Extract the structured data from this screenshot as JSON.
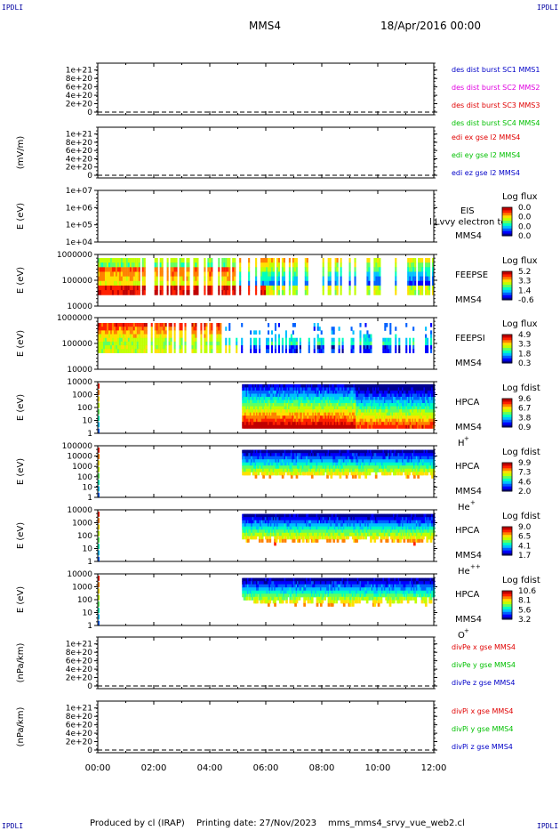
{
  "corner_label": "IPDLI",
  "header": {
    "spacecraft": "MMS4",
    "datetime": "18/Apr/2016 00:00"
  },
  "footer": {
    "produced_by": "Produced by cl (IRAP)",
    "printing_date": "Printing date: 27/Nov/2023",
    "script": "mms_mms4_srvy_vue_web2.cl"
  },
  "colors": {
    "blue": "#0000c8",
    "red": "#e00000",
    "green": "#00c000",
    "magenta": "#e000e0"
  },
  "chart_data": [
    {
      "type": "line",
      "ylabel": "",
      "yticks": [
        "1e+21",
        "8e+20",
        "6e+20",
        "4e+20",
        "2e+20",
        "0"
      ],
      "ylim": [
        0,
        1.1e+21
      ],
      "legend": [
        {
          "text": "des dist burst SC1 MMS1",
          "color": "#0000c8"
        },
        {
          "text": "des dist burst SC2 MMS2",
          "color": "#e000e0"
        },
        {
          "text": "des dist burst SC3 MMS3",
          "color": "#e00000"
        },
        {
          "text": "des dist burst SC4 MMS4",
          "color": "#00c000"
        }
      ]
    },
    {
      "type": "line",
      "ylabel": "(mV/m)",
      "yticks": [
        "1e+21",
        "8e+20",
        "6e+20",
        "4e+20",
        "2e+20",
        "0"
      ],
      "ylim": [
        0,
        1.1e+21
      ],
      "legend": [
        {
          "text": "edi ex gse l2 MMS4",
          "color": "#e00000"
        },
        {
          "text": "edi ey gse l2 MMS4",
          "color": "#00c000"
        },
        {
          "text": "edi ez gse l2 MMS4",
          "color": "#0000c8"
        }
      ]
    },
    {
      "type": "heatmap",
      "ylabel": "E (eV)",
      "yticks": [
        "1e+07",
        "1e+06",
        "1e+05",
        "1e+04"
      ],
      "scale": "log",
      "labels": [
        "EIS",
        "MMS4"
      ],
      "overlay_text": "l Lvvy electron to",
      "colorbar": {
        "title": "Log flux",
        "ticks": [
          "0.0",
          "0.0",
          "0.0",
          "0.0"
        ]
      }
    },
    {
      "type": "heatmap",
      "ylabel": "E (eV)",
      "yticks": [
        "1000000",
        "100000",
        "10000"
      ],
      "scale": "log",
      "labels": [
        "FEEPSE",
        "MMS4"
      ],
      "colorbar": {
        "title": "Log flux",
        "ticks": [
          "5.2",
          "3.3",
          "1.4",
          "-0.6"
        ]
      }
    },
    {
      "type": "heatmap",
      "ylabel": "E (eV)",
      "yticks": [
        "1000000",
        "100000",
        "10000"
      ],
      "scale": "log",
      "labels": [
        "FEEPSI",
        "MMS4"
      ],
      "colorbar": {
        "title": "Log flux",
        "ticks": [
          "4.9",
          "3.3",
          "1.8",
          "0.3"
        ]
      }
    },
    {
      "type": "heatmap",
      "ylabel": "E (eV)",
      "yticks": [
        "10000",
        "1000",
        "100",
        "10",
        "1"
      ],
      "scale": "log",
      "labels": [
        "HPCA",
        "MMS4"
      ],
      "species": "H",
      "species_sup": "+",
      "colorbar": {
        "title": "Log fdist",
        "ticks": [
          "9.6",
          "6.7",
          "3.8",
          "0.9"
        ]
      }
    },
    {
      "type": "heatmap",
      "ylabel": "E (eV)",
      "yticks": [
        "100000",
        "10000",
        "1000",
        "100",
        "10",
        "1"
      ],
      "scale": "log",
      "labels": [
        "HPCA",
        "MMS4"
      ],
      "species": "He",
      "species_sup": "+",
      "colorbar": {
        "title": "Log fdist",
        "ticks": [
          "9.9",
          "7.3",
          "4.6",
          "2.0"
        ]
      }
    },
    {
      "type": "heatmap",
      "ylabel": "E (eV)",
      "yticks": [
        "10000",
        "1000",
        "100",
        "10",
        "1"
      ],
      "scale": "log",
      "labels": [
        "HPCA",
        "MMS4"
      ],
      "species": "He",
      "species_sup": "++",
      "colorbar": {
        "title": "Log fdist",
        "ticks": [
          "9.0",
          "6.5",
          "4.1",
          "1.7"
        ]
      }
    },
    {
      "type": "heatmap",
      "ylabel": "E (eV)",
      "yticks": [
        "10000",
        "1000",
        "100",
        "10",
        "1"
      ],
      "scale": "log",
      "labels": [
        "HPCA",
        "MMS4"
      ],
      "species": "O",
      "species_sup": "+",
      "colorbar": {
        "title": "Log fdist",
        "ticks": [
          "10.6",
          "8.1",
          "5.6",
          "3.2"
        ]
      }
    },
    {
      "type": "line",
      "ylabel": "(nPa/km)",
      "yticks": [
        "1e+21",
        "8e+20",
        "6e+20",
        "4e+20",
        "2e+20",
        "0"
      ],
      "ylim": [
        0,
        1.1e+21
      ],
      "legend": [
        {
          "text": "divPe x gse MMS4",
          "color": "#e00000"
        },
        {
          "text": "divPe y gse MMS4",
          "color": "#00c000"
        },
        {
          "text": "divPe z gse MMS4",
          "color": "#0000c8"
        }
      ]
    },
    {
      "type": "line",
      "ylabel": "(nPa/km)",
      "yticks": [
        "1e+21",
        "8e+20",
        "6e+20",
        "4e+20",
        "2e+20",
        "0"
      ],
      "ylim": [
        0,
        1.1e+21
      ],
      "legend": [
        {
          "text": "divPi x gse MMS4",
          "color": "#e00000"
        },
        {
          "text": "divPi y gse MMS4",
          "color": "#00c000"
        },
        {
          "text": "divPi z gse MMS4",
          "color": "#0000c8"
        }
      ]
    }
  ],
  "x_axis": {
    "ticks": [
      "00:00",
      "02:00",
      "04:00",
      "06:00",
      "08:00",
      "10:00",
      "12:00"
    ],
    "range": [
      "00:00",
      "12:00"
    ]
  }
}
